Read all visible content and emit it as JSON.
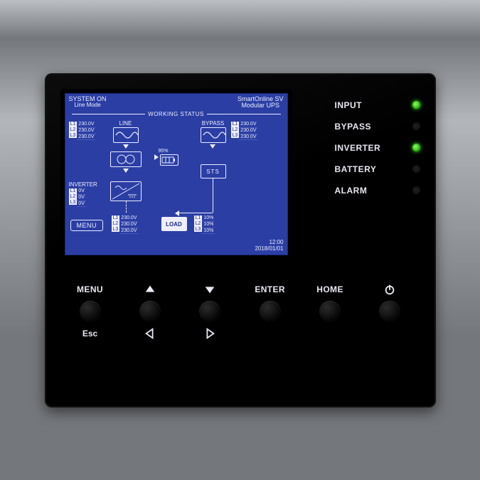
{
  "product": {
    "title_l1": "SmartOnline SV",
    "title_l2": "Modular UPS"
  },
  "system": {
    "status_l1": "SYSTEM ON",
    "status_l2": "Line Mode",
    "section": "WORKING STATUS"
  },
  "lcd": {
    "bg": "#2a3ea4",
    "fg": "#eef0ff",
    "line": {
      "label": "LINE",
      "phases": [
        "L1",
        "L2",
        "L3"
      ],
      "values": [
        "230.0V",
        "230.0V",
        "230.0V"
      ]
    },
    "bypass": {
      "label": "BYPASS",
      "phases": [
        "L1",
        "L2",
        "L3"
      ],
      "values": [
        "230.0V",
        "230.0V",
        "230.0V"
      ]
    },
    "inverter": {
      "label": "INVERTER",
      "phases": [
        "L1",
        "L2",
        "L3"
      ],
      "values": [
        "0V",
        "0V",
        "0V"
      ]
    },
    "output": {
      "phases": [
        "L1",
        "L2",
        "L3"
      ],
      "values": [
        "230.0V",
        "230.0V",
        "230.0V"
      ]
    },
    "load": {
      "label": "LOAD",
      "phases": [
        "L1",
        "L2",
        "L3"
      ],
      "values": [
        "10%",
        "10%",
        "10%"
      ]
    },
    "sts": {
      "label": "STS"
    },
    "battery": {
      "pct": "95%"
    },
    "menu_label": "MENU",
    "time": "12:00",
    "date": "2018/01/01"
  },
  "leds": [
    {
      "name": "input",
      "label": "INPUT",
      "on": true
    },
    {
      "name": "bypass",
      "label": "BYPASS",
      "on": false
    },
    {
      "name": "inverter",
      "label": "INVERTER",
      "on": true
    },
    {
      "name": "battery",
      "label": "BATTERY",
      "on": false
    },
    {
      "name": "alarm",
      "label": "ALARM",
      "on": false
    }
  ],
  "controls": {
    "menu": "MENU",
    "enter": "ENTER",
    "home": "HOME",
    "esc": "Esc"
  },
  "colors": {
    "panel": "#000000",
    "text": "#e8e8f3",
    "led_on": "#3cff1e",
    "led_off": "#1b1b1b"
  }
}
